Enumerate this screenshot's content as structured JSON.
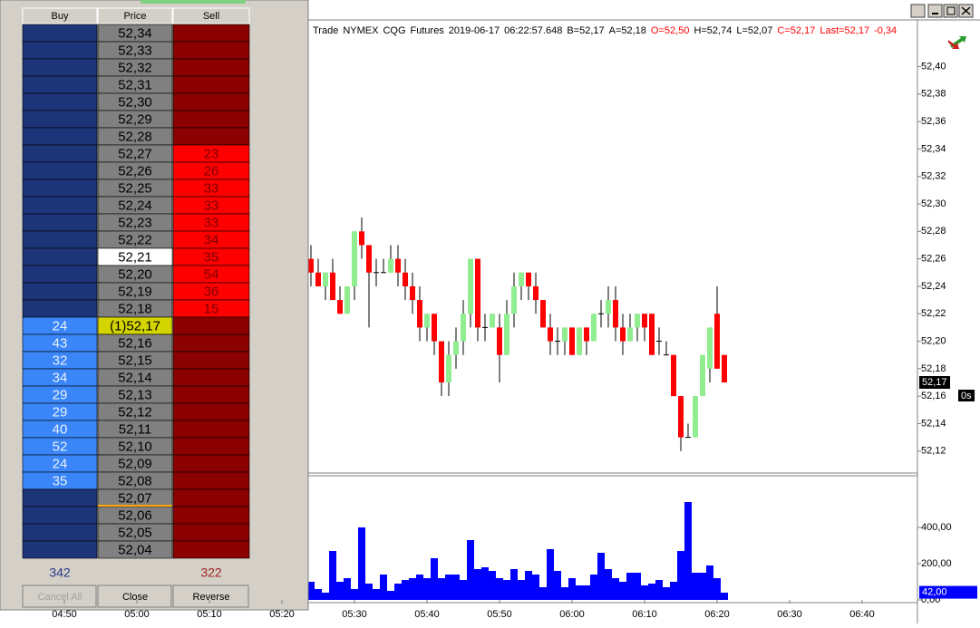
{
  "ladder": {
    "headers": [
      "Buy",
      "Price",
      "Sell"
    ],
    "colors": {
      "buy_empty": "#1c3478",
      "buy_filled": "#3a86f8",
      "sell_empty": "#8b0000",
      "sell_filled": "#ff0000",
      "price": "#808080"
    },
    "rows": [
      {
        "price": "52,34"
      },
      {
        "price": "52,33"
      },
      {
        "price": "52,32"
      },
      {
        "price": "52,31"
      },
      {
        "price": "52,30"
      },
      {
        "price": "52,29"
      },
      {
        "price": "52,28"
      },
      {
        "price": "52,27",
        "sell": 23
      },
      {
        "price": "52,26",
        "sell": 26
      },
      {
        "price": "52,25",
        "sell": 33
      },
      {
        "price": "52,24",
        "sell": 33
      },
      {
        "price": "52,23",
        "sell": 33
      },
      {
        "price": "52,22",
        "sell": 34
      },
      {
        "price": "52,21",
        "sell": 35,
        "price_bg": "#ffffff"
      },
      {
        "price": "52,20",
        "sell": 54
      },
      {
        "price": "52,19",
        "sell": 36
      },
      {
        "price": "52,18",
        "sell": 15
      },
      {
        "price": "(1)52,17",
        "buy": 24,
        "price_bg": "#d4d400"
      },
      {
        "price": "52,16",
        "buy": 43
      },
      {
        "price": "52,15",
        "buy": 32
      },
      {
        "price": "52,14",
        "buy": 34
      },
      {
        "price": "52,13",
        "buy": 29
      },
      {
        "price": "52,12",
        "buy": 29
      },
      {
        "price": "52,11",
        "buy": 40
      },
      {
        "price": "52,10",
        "buy": 52
      },
      {
        "price": "52,09",
        "buy": 24
      },
      {
        "price": "52,08",
        "buy": 35
      },
      {
        "price": "52,07"
      },
      {
        "price": "52,06"
      },
      {
        "price": "52,05"
      },
      {
        "price": "52,04"
      }
    ],
    "total_buy": 342,
    "total_sell": 322,
    "buttons": [
      "Cancel All",
      "Close",
      "Reverse"
    ]
  },
  "info": [
    {
      "text": "Trade",
      "color": "#000000"
    },
    {
      "text": "NYMEX",
      "color": "#000000"
    },
    {
      "text": "CQG",
      "color": "#000000"
    },
    {
      "text": "Futures",
      "color": "#000000"
    },
    {
      "text": "2019-06-17",
      "color": "#000000"
    },
    {
      "text": "06:22:57.648",
      "color": "#000000"
    },
    {
      "text": "B=52,17",
      "color": "#000000"
    },
    {
      "text": "A=52,18",
      "color": "#000000"
    },
    {
      "text": "O=52,50",
      "color": "#ff0000"
    },
    {
      "text": "H=52,74",
      "color": "#000000"
    },
    {
      "text": "L=52,07",
      "color": "#000000"
    },
    {
      "text": "C=52,17",
      "color": "#ff0000"
    },
    {
      "text": "Last=52,17",
      "color": "#ff0000"
    },
    {
      "text": "-0,34",
      "color": "#ff0000"
    }
  ],
  "chart_data": [
    {
      "type": "candlestick",
      "up_color": "#90ee90",
      "down_color": "#ff0000",
      "x": [
        "05:24",
        "05:25",
        "05:26",
        "05:27",
        "05:28",
        "05:29",
        "05:30",
        "05:31",
        "05:32",
        "05:33",
        "05:34",
        "05:35",
        "05:36",
        "05:37",
        "05:38",
        "05:39",
        "05:40",
        "05:41",
        "05:42",
        "05:43",
        "05:44",
        "05:45",
        "05:46",
        "05:47",
        "05:48",
        "05:49",
        "05:50",
        "05:51",
        "05:52",
        "05:53",
        "05:54",
        "05:55",
        "05:56",
        "05:57",
        "05:58",
        "05:59",
        "06:00",
        "06:01",
        "06:02",
        "06:03",
        "06:04",
        "06:05",
        "06:06",
        "06:07",
        "06:08",
        "06:09",
        "06:10",
        "06:11",
        "06:12",
        "06:13",
        "06:14",
        "06:15",
        "06:16",
        "06:17",
        "06:18",
        "06:19",
        "06:20",
        "06:21"
      ],
      "open": [
        52.26,
        52.25,
        52.24,
        52.25,
        52.23,
        52.22,
        52.24,
        52.28,
        52.27,
        52.25,
        52.25,
        52.25,
        52.26,
        52.25,
        52.24,
        52.23,
        52.21,
        52.22,
        52.2,
        52.17,
        52.19,
        52.2,
        52.22,
        52.26,
        52.21,
        52.21,
        52.21,
        52.19,
        52.22,
        52.24,
        52.25,
        52.24,
        52.23,
        52.21,
        52.2,
        52.2,
        52.21,
        52.19,
        52.21,
        52.2,
        52.22,
        52.22,
        52.23,
        52.21,
        52.2,
        52.21,
        52.22,
        52.22,
        52.2,
        52.19,
        52.19,
        52.16,
        52.13,
        52.13,
        52.16,
        52.18,
        52.22,
        52.19
      ],
      "high": [
        52.27,
        52.26,
        52.25,
        52.26,
        52.24,
        52.24,
        52.28,
        52.29,
        52.27,
        52.26,
        52.26,
        52.27,
        52.27,
        52.26,
        52.25,
        52.24,
        52.22,
        52.22,
        52.2,
        52.2,
        52.21,
        52.23,
        52.26,
        52.26,
        52.22,
        52.22,
        52.22,
        52.23,
        52.25,
        52.25,
        52.25,
        52.25,
        52.23,
        52.22,
        52.21,
        52.21,
        52.21,
        52.21,
        52.21,
        52.22,
        52.23,
        52.24,
        52.24,
        52.22,
        52.22,
        52.22,
        52.22,
        52.22,
        52.21,
        52.2,
        52.19,
        52.16,
        52.14,
        52.16,
        52.19,
        52.21,
        52.24,
        52.19
      ],
      "low": [
        52.24,
        52.24,
        52.23,
        52.23,
        52.22,
        52.22,
        52.23,
        52.26,
        52.21,
        52.24,
        52.25,
        52.25,
        52.24,
        52.23,
        52.22,
        52.2,
        52.2,
        52.19,
        52.16,
        52.16,
        52.18,
        52.19,
        52.21,
        52.2,
        52.2,
        52.21,
        52.17,
        52.19,
        52.21,
        52.23,
        52.23,
        52.22,
        52.21,
        52.19,
        52.19,
        52.19,
        52.19,
        52.19,
        52.19,
        52.2,
        52.21,
        52.21,
        52.2,
        52.19,
        52.2,
        52.2,
        52.2,
        52.19,
        52.19,
        52.19,
        52.16,
        52.12,
        52.13,
        52.13,
        52.16,
        52.17,
        52.18,
        52.17
      ],
      "close": [
        52.25,
        52.24,
        52.25,
        52.23,
        52.22,
        52.24,
        52.28,
        52.27,
        52.25,
        52.25,
        52.25,
        52.26,
        52.25,
        52.24,
        52.23,
        52.21,
        52.22,
        52.2,
        52.17,
        52.19,
        52.2,
        52.22,
        52.26,
        52.21,
        52.21,
        52.22,
        52.19,
        52.22,
        52.24,
        52.25,
        52.24,
        52.23,
        52.21,
        52.2,
        52.2,
        52.21,
        52.19,
        52.21,
        52.2,
        52.22,
        52.22,
        52.23,
        52.21,
        52.2,
        52.21,
        52.22,
        52.21,
        52.19,
        52.2,
        52.19,
        52.16,
        52.13,
        52.13,
        52.16,
        52.19,
        52.21,
        52.18,
        52.17
      ],
      "ylim": [
        52.104,
        52.434
      ],
      "yticks": [
        {
          "value": 52.12,
          "label": "52,12"
        },
        {
          "value": 52.14,
          "label": "52,14"
        },
        {
          "value": 52.16,
          "label": "52,16"
        },
        {
          "value": 52.18,
          "label": "52,18"
        },
        {
          "value": 52.2,
          "label": "52,20"
        },
        {
          "value": 52.22,
          "label": "52,22"
        },
        {
          "value": 52.24,
          "label": "52,24"
        },
        {
          "value": 52.26,
          "label": "52,26"
        },
        {
          "value": 52.28,
          "label": "52,28"
        },
        {
          "value": 52.3,
          "label": "52,30"
        },
        {
          "value": 52.32,
          "label": "52,32"
        },
        {
          "value": 52.34,
          "label": "52,34"
        },
        {
          "value": 52.36,
          "label": "52,36"
        },
        {
          "value": 52.38,
          "label": "52,38"
        },
        {
          "value": 52.4,
          "label": "52,40"
        }
      ],
      "xticks": [
        "04:50",
        "05:00",
        "05:10",
        "05:20",
        "05:30",
        "05:40",
        "05:50",
        "06:00",
        "06:10",
        "06:20",
        "06:30",
        "06:40"
      ],
      "price_tag": {
        "value": 52.17,
        "label": "52,17"
      },
      "timer": "0s"
    },
    {
      "type": "bar",
      "color": "#0000ff",
      "values": [
        100,
        60,
        40,
        270,
        100,
        120,
        60,
        400,
        90,
        60,
        140,
        50,
        90,
        110,
        120,
        140,
        120,
        230,
        120,
        140,
        140,
        110,
        330,
        170,
        180,
        160,
        120,
        110,
        170,
        110,
        160,
        140,
        70,
        280,
        160,
        70,
        120,
        80,
        80,
        140,
        260,
        170,
        120,
        100,
        150,
        150,
        80,
        90,
        110,
        70,
        100,
        270,
        540,
        150,
        150,
        190,
        120,
        40
      ],
      "ylim": [
        0,
        700
      ],
      "yticks": [
        {
          "value": 0,
          "label": "0,00"
        },
        {
          "value": 200,
          "label": "200,00"
        },
        {
          "value": 400,
          "label": "400,00"
        }
      ],
      "tag": {
        "value": 42,
        "label": "42,00"
      }
    }
  ]
}
